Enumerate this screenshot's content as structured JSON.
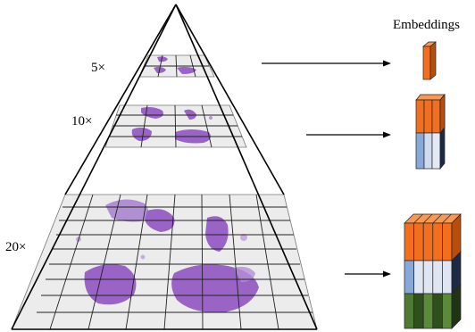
{
  "diagram": {
    "legend_title": "Embeddings",
    "levels": [
      {
        "label": "5×"
      },
      {
        "label": "10×"
      },
      {
        "label": "20×"
      }
    ],
    "colors": {
      "orange": "#f26f1f",
      "blue": "#87a9d9",
      "green": "#4f7a32",
      "tile_fill": "#ececec",
      "tissue": "#9a63c6",
      "outline": "#111111"
    }
  }
}
